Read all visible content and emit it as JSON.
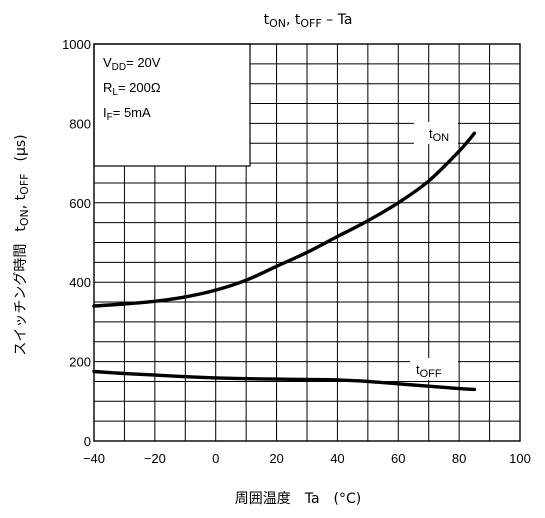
{
  "chart_data": {
    "type": "line",
    "title": "tON, tOFF – Ta",
    "title_parts": {
      "t1": "t",
      "s1": "ON",
      "sep": ", t",
      "s2": "OFF",
      "tail": " – Ta"
    },
    "xlabel": "周囲温度　Ta　(°C)",
    "ylabel": "スイッチング時間　tON, tOFF　(μs)",
    "ylabel_parts": {
      "jp": "スイッチング時間",
      "t1": "t",
      "s1": "ON",
      "sep": ", t",
      "s2": "OFF",
      "unit": "(μs)"
    },
    "xlim": [
      -40,
      100
    ],
    "ylim": [
      0,
      1000
    ],
    "x_ticks": [
      "−40",
      "−20",
      "0",
      "20",
      "40",
      "60",
      "80",
      "100"
    ],
    "y_ticks": [
      "0",
      "200",
      "400",
      "600",
      "800",
      "1000"
    ],
    "grid": true,
    "conditions": [
      {
        "sym": "V",
        "sub": "DD",
        "val": "= 20V"
      },
      {
        "sym": "R",
        "sub": "L",
        "val": "= 200Ω"
      },
      {
        "sym": "I",
        "sub": "F",
        "val": "= 5mA"
      }
    ],
    "series": [
      {
        "name": "tON",
        "label": {
          "t": "t",
          "sub": "ON"
        },
        "x": [
          -40,
          -30,
          -20,
          -10,
          0,
          10,
          20,
          30,
          40,
          50,
          60,
          70,
          80,
          85
        ],
        "y": [
          340,
          345,
          352,
          363,
          380,
          405,
          440,
          475,
          515,
          555,
          600,
          655,
          730,
          775
        ]
      },
      {
        "name": "tOFF",
        "label": {
          "t": "t",
          "sub": "OFF"
        },
        "x": [
          -40,
          -30,
          -20,
          -10,
          0,
          10,
          20,
          30,
          40,
          50,
          60,
          70,
          80,
          85
        ],
        "y": [
          175,
          170,
          166,
          162,
          159,
          157,
          156,
          155,
          154,
          150,
          144,
          138,
          132,
          130
        ]
      }
    ]
  }
}
